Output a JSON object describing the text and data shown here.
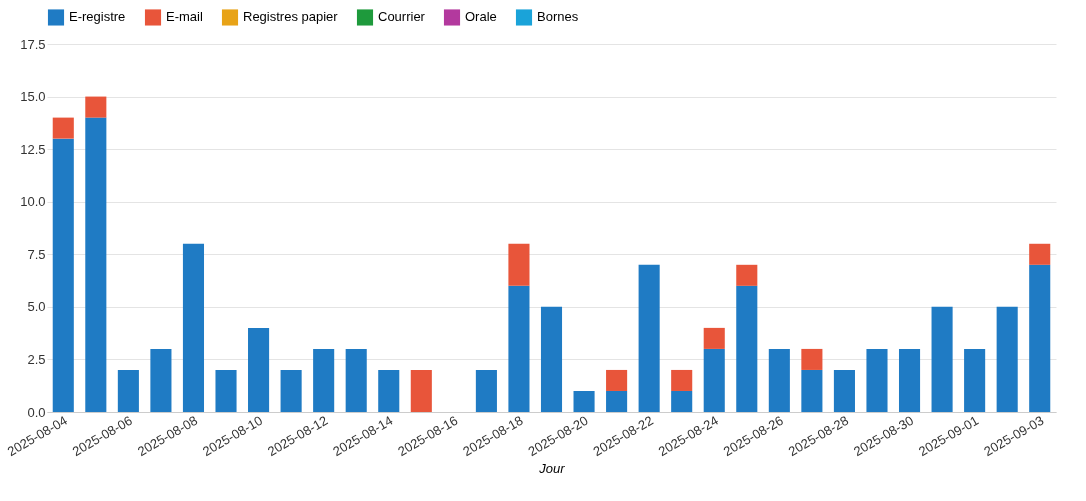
{
  "chart_data": {
    "type": "bar",
    "stacked": true,
    "xlabel": "Jour",
    "legend": "top left",
    "grid": "y",
    "categories": [
      "2025-08-04",
      null,
      "2025-08-06",
      null,
      "2025-08-08",
      null,
      "2025-08-10",
      null,
      "2025-08-12",
      null,
      "2025-08-14",
      null,
      "2025-08-16",
      null,
      "2025-08-18",
      null,
      "2025-08-20",
      null,
      "2025-08-22",
      null,
      "2025-08-24",
      null,
      "2025-08-26",
      null,
      "2025-08-28",
      null,
      "2025-08-30",
      null,
      "2025-09-01",
      null,
      "2025-09-03"
    ],
    "ylim": [
      0,
      17.5
    ],
    "yticks": [
      {
        "value": 0,
        "label": "0.0"
      },
      2.5,
      {
        "value": 5,
        "label": "5.0"
      },
      7.5,
      {
        "value": 10,
        "label": "10.0"
      },
      12.5,
      {
        "value": 15,
        "label": "15.0"
      },
      17.5
    ],
    "series": [
      {
        "name": "E-registre",
        "color": "#1f7bc4",
        "values": [
          13,
          14,
          2,
          3,
          8,
          2,
          4,
          2,
          3,
          3,
          2,
          0,
          0,
          2,
          6,
          5,
          1,
          1,
          7,
          1,
          3,
          6,
          3,
          2,
          2,
          3,
          3,
          5,
          3,
          5,
          7
        ]
      },
      {
        "name": "E-mail",
        "color": "#e8553a",
        "values": [
          1,
          1,
          0,
          0,
          0,
          0,
          0,
          0,
          0,
          0,
          0,
          2,
          0,
          0,
          2,
          0,
          0,
          1,
          0,
          1,
          1,
          1,
          0,
          1,
          0,
          0,
          0,
          0,
          0,
          0,
          1
        ]
      },
      {
        "name": "Registres papier",
        "color": "#e8a317",
        "values": [
          0,
          0,
          0,
          0,
          0,
          0,
          0,
          0,
          0,
          0,
          0,
          0,
          0,
          0,
          0,
          0,
          0,
          0,
          0,
          0,
          0,
          0,
          0,
          0,
          0,
          0,
          0,
          0,
          0,
          0,
          0
        ]
      },
      {
        "name": "Courrier",
        "color": "#1e9a3c",
        "values": [
          0,
          0,
          0,
          0,
          0,
          0,
          0,
          0,
          0,
          0,
          0,
          0,
          0,
          0,
          0,
          0,
          0,
          0,
          0,
          0,
          0,
          0,
          0,
          0,
          0,
          0,
          0,
          0,
          0,
          0,
          0
        ]
      },
      {
        "name": "Orale",
        "color": "#b3399e",
        "values": [
          0,
          0,
          0,
          0,
          0,
          0,
          0,
          0,
          0,
          0,
          0,
          0,
          0,
          0,
          0,
          0,
          0,
          0,
          0,
          0,
          0,
          0,
          0,
          0,
          0,
          0,
          0,
          0,
          0,
          0,
          0
        ]
      },
      {
        "name": "Bornes",
        "color": "#1aa3d9",
        "values": [
          0,
          0,
          0,
          0,
          0,
          0,
          0,
          0,
          0,
          0,
          0,
          0,
          0,
          0,
          0,
          0,
          0,
          0,
          0,
          0,
          0,
          0,
          0,
          0,
          0,
          0,
          0,
          0,
          0,
          0,
          0
        ]
      }
    ]
  }
}
